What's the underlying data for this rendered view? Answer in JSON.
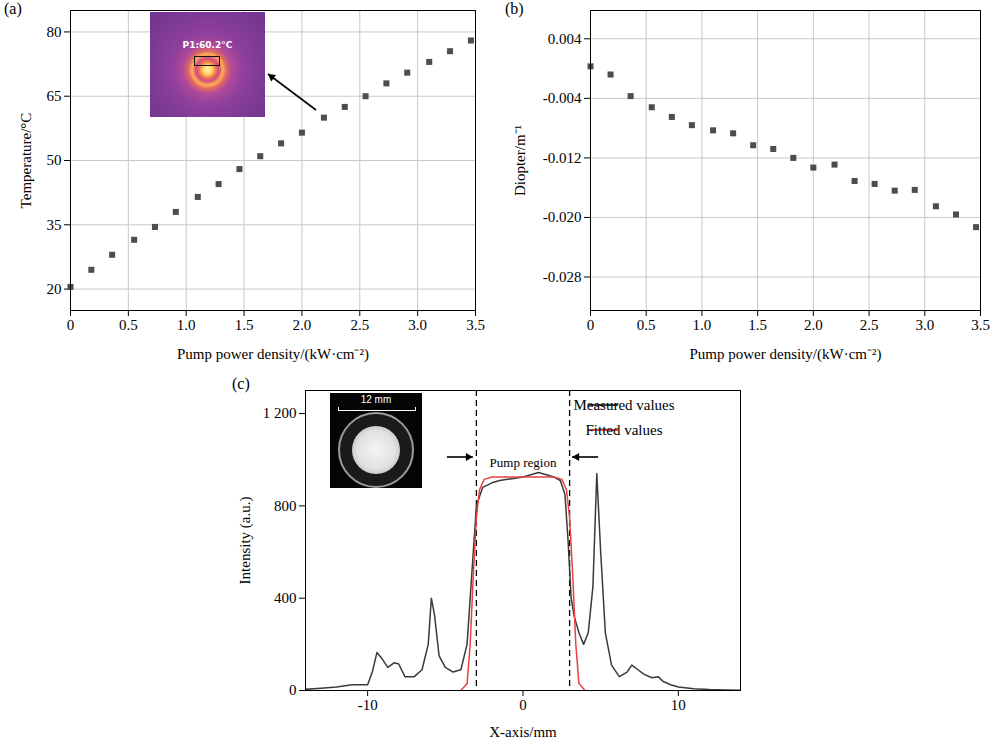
{
  "chart_data": [
    {
      "type": "scatter",
      "panel": "(a)",
      "x_label": "Pump power density/(kW·cm⁻²)",
      "y_label": "Temperature/°C",
      "x": [
        0,
        0.18,
        0.36,
        0.55,
        0.73,
        0.91,
        1.1,
        1.28,
        1.46,
        1.64,
        1.82,
        2.0,
        2.19,
        2.37,
        2.55,
        2.73,
        2.91,
        3.1,
        3.28,
        3.46
      ],
      "values": [
        20.5,
        24.5,
        28,
        31.5,
        34.5,
        38,
        41.5,
        44.5,
        48,
        51,
        54,
        56.5,
        60,
        62.5,
        65,
        68,
        70.5,
        73,
        75.5,
        78
      ],
      "xlim": [
        0,
        3.5
      ],
      "xticks": [
        0,
        0.5,
        {
          "value": 1,
          "label": "1.0"
        },
        1.5,
        {
          "value": 2,
          "label": "2.0"
        },
        2.5,
        {
          "value": 3,
          "label": "3.0"
        },
        3.5
      ],
      "ylim": [
        15,
        85
      ],
      "yticks": [
        20,
        35,
        50,
        65,
        80
      ],
      "marker": "square",
      "color": "#4d4d4d",
      "grid": true,
      "inset_label": "P1:60.2°C"
    },
    {
      "type": "scatter",
      "panel": "(b)",
      "x_label": "Pump power density/(kW·cm⁻²)",
      "y_label": "Diopter/m⁻¹",
      "x": [
        0,
        0.18,
        0.36,
        0.55,
        0.73,
        0.91,
        1.1,
        1.28,
        1.46,
        1.64,
        1.82,
        2.0,
        2.19,
        2.37,
        2.55,
        2.73,
        2.91,
        3.1,
        3.28,
        3.46
      ],
      "values": [
        0.0003,
        -0.0008,
        -0.0037,
        -0.0052,
        -0.0065,
        -0.0076,
        -0.0083,
        -0.0087,
        -0.0103,
        -0.0108,
        -0.012,
        -0.0133,
        -0.0129,
        -0.0151,
        -0.0155,
        -0.0164,
        -0.0163,
        -0.0185,
        -0.0196,
        -0.0213
      ],
      "xlim": [
        0,
        3.5
      ],
      "xticks": [
        0,
        0.5,
        {
          "value": 1,
          "label": "1.0"
        },
        1.5,
        {
          "value": 2,
          "label": "2.0"
        },
        2.5,
        {
          "value": 3,
          "label": "3.0"
        },
        3.5
      ],
      "ylim": [
        -0.0325,
        0.0078
      ],
      "yticks": [
        0.004,
        -0.004,
        -0.012,
        {
          "value": -0.02,
          "label": "-0.020"
        },
        -0.028
      ],
      "marker": "square",
      "color": "#4d4d4d",
      "grid": true
    },
    {
      "type": "line",
      "panel": "(c)",
      "x_label": "X-axis/mm",
      "y_label": "Intensity (a.u.)",
      "xlim": [
        -14,
        14
      ],
      "xticks": [
        -10,
        0,
        10
      ],
      "ylim": [
        0,
        1300
      ],
      "yticks": [
        0,
        400,
        800,
        {
          "value": 1200,
          "label": "1 200"
        }
      ],
      "grid": false,
      "legend": "top-right",
      "series": [
        {
          "name": "Measured values",
          "color": "#3a3a3a",
          "x": [
            -14,
            -13,
            -12,
            -11,
            -10.5,
            -10,
            -9.7,
            -9.4,
            -9.1,
            -8.7,
            -8.3,
            -8.0,
            -7.6,
            -7.0,
            -6.5,
            -6.1,
            -5.9,
            -5.7,
            -5.4,
            -5.0,
            -4.5,
            -4.0,
            -3.6,
            -3.3,
            -3.0,
            -2.6,
            -2.0,
            -1.5,
            -1.0,
            -0.5,
            0,
            0.5,
            1.0,
            1.5,
            2.0,
            2.4,
            2.7,
            2.9,
            3.1,
            3.3,
            3.6,
            3.9,
            4.2,
            4.5,
            4.75,
            5.0,
            5.3,
            5.7,
            6.2,
            6.7,
            7.0,
            7.4,
            7.8,
            8.3,
            8.7,
            9.0,
            9.5,
            10,
            11,
            12,
            13,
            14
          ],
          "values": [
            5,
            10,
            15,
            25,
            25,
            25,
            80,
            165,
            140,
            100,
            120,
            115,
            60,
            60,
            90,
            200,
            400,
            330,
            150,
            100,
            80,
            90,
            200,
            500,
            800,
            880,
            900,
            910,
            915,
            920,
            925,
            935,
            945,
            935,
            925,
            910,
            850,
            650,
            400,
            320,
            250,
            200,
            250,
            450,
            940,
            600,
            250,
            110,
            60,
            80,
            110,
            90,
            70,
            55,
            60,
            40,
            25,
            15,
            8,
            4,
            2,
            1
          ]
        },
        {
          "name": "Fitted values",
          "color": "#e8423c",
          "x": [
            -4,
            -3.6,
            -3.4,
            -3.2,
            -3.0,
            -2.8,
            -2.5,
            -2.0,
            0,
            2.0,
            2.5,
            2.8,
            3.0,
            3.2,
            3.4,
            3.6,
            4
          ],
          "values": [
            0,
            30,
            200,
            500,
            750,
            870,
            915,
            925,
            925,
            925,
            915,
            870,
            750,
            500,
            200,
            30,
            0
          ]
        }
      ],
      "pump_region": {
        "x": [
          -3,
          3
        ],
        "label": "Pump region",
        "line_style": "dashed"
      },
      "inset_label": "12 mm"
    }
  ]
}
